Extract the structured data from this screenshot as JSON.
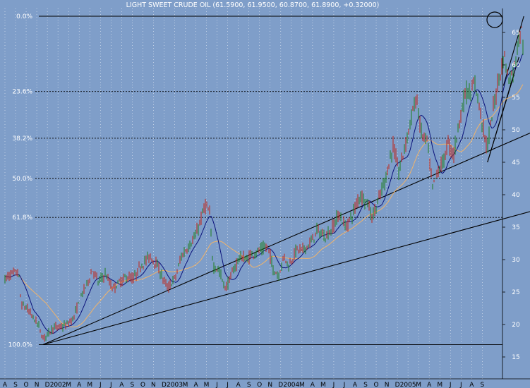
{
  "chart_data": {
    "type": "candlestick",
    "title": "LIGHT SWEET CRUDE OIL (61.5900, 61.9500, 60.8700, 61.8900, +0.32000)",
    "xlabel": "",
    "ylabel": "",
    "ylim": [
      15,
      67.6
    ],
    "grid": true,
    "legend": "none",
    "y_ticks": [
      "15",
      "20",
      "25",
      "30",
      "35",
      "40",
      "45",
      "50",
      "55",
      "60",
      "65"
    ],
    "x_ticks": [
      "A",
      "S",
      "O",
      "N",
      "D",
      "2002",
      "M",
      "A",
      "M",
      "J",
      "J",
      "A",
      "S",
      "O",
      "N",
      "D",
      "2003",
      "M",
      "A",
      "M",
      "J",
      "J",
      "A",
      "S",
      "O",
      "N",
      "D",
      "2004",
      "M",
      "A",
      "M",
      "J",
      "J",
      "A",
      "S",
      "O",
      "N",
      "D",
      "2005",
      "M",
      "A",
      "M",
      "J",
      "J",
      "A",
      "S"
    ],
    "fib_levels": [
      {
        "label": "0.0%",
        "value": 67.5
      },
      {
        "label": "23.6%",
        "value": 55.9
      },
      {
        "label": "38.2%",
        "value": 48.7
      },
      {
        "label": "50.0%",
        "value": 42.5
      },
      {
        "label": "61.8%",
        "value": 36.5
      },
      {
        "label": "100.0%",
        "value": 16.9
      }
    ],
    "trendlines": [
      {
        "from": [
          "2001-11-19",
          16.9
        ],
        "to": [
          "2005-09-30",
          37.4
        ]
      },
      {
        "from": [
          "2001-11-19",
          16.9
        ],
        "to": [
          "2005-09-30",
          49.5
        ]
      },
      {
        "from": [
          "2005-05-16",
          45.0
        ],
        "to": [
          "2005-08-01",
          58.5
        ]
      },
      {
        "from": [
          "2005-05-16",
          45.0
        ],
        "to": [
          "2005-08-15",
          61.2
        ]
      },
      {
        "from": [
          "2005-07-01",
          56.8
        ],
        "to": [
          "2005-08-29",
          67.5
        ]
      }
    ],
    "price_key_points": [
      [
        "2001-08-01",
        27.0
      ],
      [
        "2001-08-20",
        27.8
      ],
      [
        "2001-09-10",
        28.0
      ],
      [
        "2001-09-17",
        23.0
      ],
      [
        "2001-10-01",
        22.6
      ],
      [
        "2001-10-15",
        21.5
      ],
      [
        "2001-11-05",
        20.0
      ],
      [
        "2001-11-19",
        17.8
      ],
      [
        "2001-12-17",
        19.5
      ],
      [
        "2002-01-10",
        19.6
      ],
      [
        "2002-01-28",
        20.0
      ],
      [
        "2002-02-15",
        21.0
      ],
      [
        "2002-03-08",
        24.5
      ],
      [
        "2002-03-25",
        26.5
      ],
      [
        "2002-04-10",
        28.5
      ],
      [
        "2002-04-25",
        26.5
      ],
      [
        "2002-05-15",
        27.8
      ],
      [
        "2002-06-05",
        25.5
      ],
      [
        "2002-06-25",
        26.5
      ],
      [
        "2002-07-15",
        27.3
      ],
      [
        "2002-08-05",
        27.0
      ],
      [
        "2002-08-25",
        29.0
      ],
      [
        "2002-09-20",
        30.5
      ],
      [
        "2002-10-08",
        29.5
      ],
      [
        "2002-10-25",
        27.5
      ],
      [
        "2002-11-12",
        25.5
      ],
      [
        "2002-12-05",
        27.5
      ],
      [
        "2002-12-20",
        30.5
      ],
      [
        "2003-01-10",
        32.0
      ],
      [
        "2003-01-30",
        33.5
      ],
      [
        "2003-02-20",
        37.0
      ],
      [
        "2003-02-28",
        38.5
      ],
      [
        "2003-03-10",
        37.0
      ],
      [
        "2003-03-20",
        29.0
      ],
      [
        "2003-04-05",
        28.5
      ],
      [
        "2003-04-25",
        25.5
      ],
      [
        "2003-05-15",
        28.0
      ],
      [
        "2003-06-05",
        30.5
      ],
      [
        "2003-06-25",
        30.0
      ],
      [
        "2003-07-15",
        31.0
      ],
      [
        "2003-08-05",
        31.5
      ],
      [
        "2003-08-25",
        32.0
      ],
      [
        "2003-09-10",
        28.5
      ],
      [
        "2003-09-25",
        27.5
      ],
      [
        "2003-10-10",
        30.5
      ],
      [
        "2003-10-25",
        29.0
      ],
      [
        "2003-11-15",
        31.5
      ],
      [
        "2003-12-05",
        31.5
      ],
      [
        "2003-12-25",
        32.5
      ],
      [
        "2004-01-15",
        34.5
      ],
      [
        "2004-02-05",
        33.5
      ],
      [
        "2004-02-25",
        34.5
      ],
      [
        "2004-03-15",
        37.0
      ],
      [
        "2004-04-05",
        35.0
      ],
      [
        "2004-04-25",
        37.0
      ],
      [
        "2004-05-15",
        40.0
      ],
      [
        "2004-06-05",
        39.0
      ],
      [
        "2004-06-20",
        36.5
      ],
      [
        "2004-07-10",
        39.5
      ],
      [
        "2004-07-30",
        43.0
      ],
      [
        "2004-08-19",
        47.5
      ],
      [
        "2004-09-05",
        43.5
      ],
      [
        "2004-09-25",
        48.0
      ],
      [
        "2004-10-15",
        53.0
      ],
      [
        "2004-10-25",
        55.0
      ],
      [
        "2004-11-10",
        49.0
      ],
      [
        "2004-11-25",
        48.5
      ],
      [
        "2004-12-10",
        41.0
      ],
      [
        "2004-12-25",
        43.5
      ],
      [
        "2005-01-10",
        45.0
      ],
      [
        "2005-01-25",
        48.0
      ],
      [
        "2005-02-10",
        46.0
      ],
      [
        "2005-02-25",
        51.0
      ],
      [
        "2005-03-15",
        56.0
      ],
      [
        "2005-03-31",
        55.5
      ],
      [
        "2005-04-10",
        57.5
      ],
      [
        "2005-04-25",
        53.0
      ],
      [
        "2005-05-15",
        47.0
      ],
      [
        "2005-06-01",
        53.0
      ],
      [
        "2005-06-20",
        58.5
      ],
      [
        "2005-07-05",
        61.5
      ],
      [
        "2005-07-15",
        57.5
      ],
      [
        "2005-08-01",
        59.5
      ],
      [
        "2005-08-12",
        63.5
      ],
      [
        "2005-08-22",
        65.5
      ],
      [
        "2005-08-29",
        61.9
      ]
    ]
  }
}
